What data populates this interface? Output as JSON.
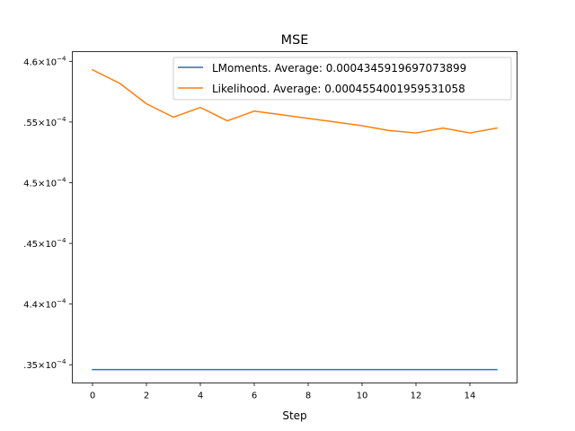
{
  "chart_data": {
    "type": "line",
    "title": "MSE",
    "xlabel": "Step",
    "ylabel": "",
    "xlim": [
      -0.75,
      15.75
    ],
    "ylim": [
      0.0004335,
      0.0004608
    ],
    "legend_position": "top-right",
    "x_ticks": [
      {
        "value": 0,
        "label": "0"
      },
      {
        "value": 2,
        "label": "2"
      },
      {
        "value": 4,
        "label": "4"
      },
      {
        "value": 6,
        "label": "6"
      },
      {
        "value": 8,
        "label": "8"
      },
      {
        "value": 10,
        "label": "10"
      },
      {
        "value": 12,
        "label": "12"
      },
      {
        "value": 14,
        "label": "14"
      }
    ],
    "y_ticks": [
      {
        "value": 0.000435,
        "mantissa": ".35",
        "base": "10",
        "exponent": "−4"
      },
      {
        "value": 0.00044,
        "mantissa": "4.4",
        "base": "10",
        "exponent": "−4"
      },
      {
        "value": 0.000445,
        "mantissa": ".45",
        "base": "10",
        "exponent": "−4"
      },
      {
        "value": 0.00045,
        "mantissa": "4.5",
        "base": "10",
        "exponent": "−4"
      },
      {
        "value": 0.000455,
        "mantissa": ".55",
        "base": "10",
        "exponent": "−4"
      },
      {
        "value": 0.00046,
        "mantissa": "4.6",
        "base": "10",
        "exponent": "−4"
      }
    ],
    "x": [
      0,
      1,
      2,
      3,
      4,
      5,
      6,
      7,
      8,
      9,
      10,
      11,
      12,
      13,
      14,
      15
    ],
    "series": [
      {
        "name": "LMoments. Average: 0.0004345919697073899",
        "color": "#1f77b4",
        "values": [
          0.0004346,
          0.0004346,
          0.0004346,
          0.0004346,
          0.0004346,
          0.0004346,
          0.0004346,
          0.0004346,
          0.0004346,
          0.0004346,
          0.0004346,
          0.0004346,
          0.0004346,
          0.0004346,
          0.0004346,
          0.0004346
        ]
      },
      {
        "name": "Likelihood. Average: 0.0004554001959531058",
        "color": "#ff7f0e",
        "values": [
          0.0004593,
          0.0004582,
          0.0004565,
          0.0004554,
          0.0004562,
          0.0004551,
          0.0004559,
          0.0004556,
          0.0004553,
          0.000455,
          0.0004547,
          0.0004543,
          0.0004541,
          0.0004545,
          0.0004541,
          0.0004545
        ]
      }
    ]
  }
}
